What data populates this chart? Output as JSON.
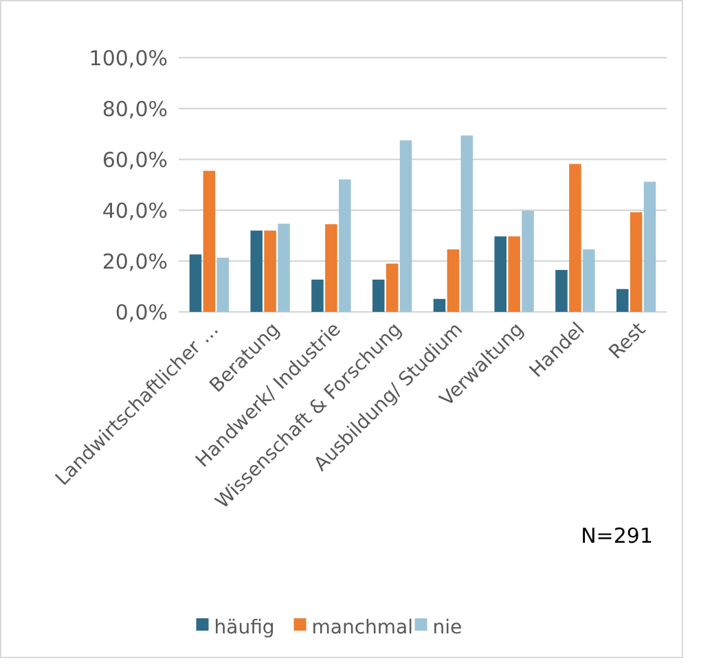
{
  "chart_data": {
    "type": "bar",
    "categories": [
      "Landwirtschaftlicher …",
      "Beratung",
      "Handwerk/ Industrie",
      "Wissenschaft & Forschung",
      "Ausbildung/ Studium",
      "Verwaltung",
      "Handel",
      "Rest"
    ],
    "series": [
      {
        "name": "häufig",
        "color": "#2e6b87",
        "values": [
          22.6,
          32.0,
          12.7,
          12.7,
          5.1,
          29.7,
          16.5,
          9.0
        ]
      },
      {
        "name": "manchmal",
        "color": "#ed7d31",
        "values": [
          55.5,
          32.0,
          34.5,
          19.0,
          24.6,
          29.7,
          58.2,
          39.2
        ]
      },
      {
        "name": "nie",
        "color": "#9dc3d6",
        "values": [
          21.3,
          34.7,
          52.1,
          67.5,
          69.4,
          39.8,
          24.6,
          51.2
        ]
      }
    ],
    "ylim": [
      0,
      100
    ],
    "yticks": [
      {
        "value": 0,
        "label": "0,0%"
      },
      {
        "value": 20,
        "label": "20,0%"
      },
      {
        "value": 40,
        "label": "40,0%"
      },
      {
        "value": 60,
        "label": "60,0%"
      },
      {
        "value": 80,
        "label": "80,0%"
      },
      {
        "value": 100,
        "label": "100,0%"
      }
    ],
    "grid": "y",
    "legend": "bottom",
    "annotations": [
      "N=291"
    ]
  }
}
